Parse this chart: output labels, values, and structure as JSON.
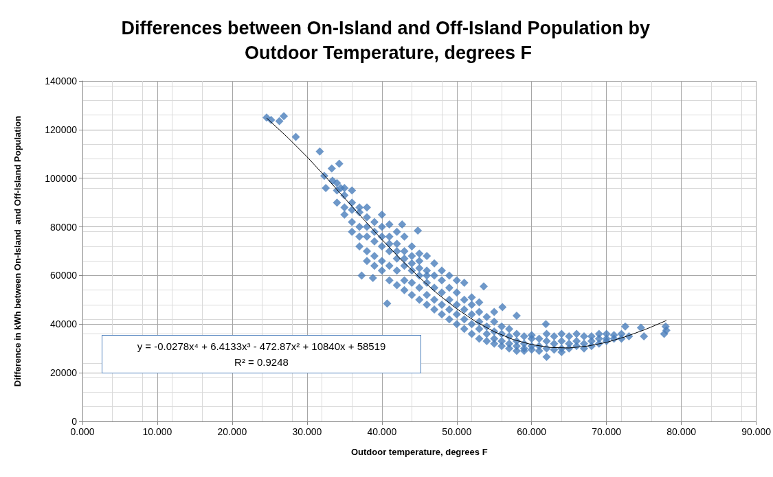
{
  "chart_data": {
    "type": "scatter",
    "title": "Differences between On-Island and Off-Island Population by Outdoor Temperature, degrees F",
    "xlabel": "Outdoor temperature, degrees F",
    "ylabel": "Difference in kWh between On-Island  and Off-Island Population",
    "xlim": [
      0,
      90
    ],
    "xticks": [
      {
        "value": 0,
        "label": "0.000"
      },
      {
        "value": 10,
        "label": "10.000"
      },
      {
        "value": 20,
        "label": "20.000"
      },
      {
        "value": 30,
        "label": "30.000"
      },
      {
        "value": 40,
        "label": "40.000"
      },
      {
        "value": 50,
        "label": "50.000"
      },
      {
        "value": 60,
        "label": "60.000"
      },
      {
        "value": 70,
        "label": "70.000"
      },
      {
        "value": 80,
        "label": "80.000"
      },
      {
        "value": 90,
        "label": "90.000"
      }
    ],
    "ylim": [
      0,
      140000
    ],
    "yticks": [
      0,
      20000,
      40000,
      60000,
      80000,
      100000,
      120000,
      140000
    ],
    "grid": true,
    "marker": "diamond",
    "annotations": [
      "y = -0.0278x⁴ + 6.4133x³ - 472.87x² + 10840x + 58519",
      "R² = 0.9248"
    ],
    "series": [
      {
        "type": "scatter",
        "color": "#4a7ebb",
        "x": [
          24.6,
          25.2,
          26.3,
          26.9,
          28.5,
          31.7,
          32.3,
          32.5,
          33.3,
          33.4,
          34.3,
          34.5,
          37.3,
          38.8,
          40.7,
          42.7,
          44.8,
          53.6,
          56.1,
          58.0,
          61.9,
          62.0,
          72.5,
          74.6,
          75.0,
          77.7,
          77.9,
          78.0,
          34,
          34,
          34,
          35,
          35,
          35,
          35,
          36,
          36,
          36,
          36,
          36,
          37,
          37,
          37,
          37,
          37,
          38,
          38,
          38,
          38,
          38,
          38,
          39,
          39,
          39,
          39,
          39,
          40,
          40,
          40,
          40,
          40,
          40,
          41,
          41,
          41,
          41,
          41,
          41,
          42,
          42,
          42,
          42,
          42,
          42,
          43,
          43,
          43,
          43,
          43,
          43,
          44,
          44,
          44,
          44,
          44,
          44,
          45,
          45,
          45,
          45,
          45,
          45,
          46,
          46,
          46,
          46,
          46,
          46,
          47,
          47,
          47,
          47,
          47,
          48,
          48,
          48,
          48,
          48,
          49,
          49,
          49,
          49,
          49,
          50,
          50,
          50,
          50,
          50,
          51,
          51,
          51,
          51,
          51,
          52,
          52,
          52,
          52,
          52,
          53,
          53,
          53,
          53,
          53,
          54,
          54,
          54,
          54,
          55,
          55,
          55,
          55,
          55,
          56,
          56,
          56,
          56,
          57,
          57,
          57,
          57,
          58,
          58,
          58,
          58,
          59,
          59,
          59,
          59,
          60,
          60,
          60,
          60,
          61,
          61,
          61,
          62,
          62,
          62,
          63,
          63,
          63,
          64,
          64,
          64,
          64,
          65,
          65,
          65,
          66,
          66,
          66,
          67,
          67,
          67,
          68,
          68,
          68,
          69,
          69,
          69,
          70,
          70,
          70,
          71,
          71,
          72,
          72,
          73
        ],
        "values": [
          125000,
          124000,
          123500,
          125500,
          117000,
          111000,
          101000,
          96000,
          104000,
          99000,
          106000,
          96000,
          60000,
          59000,
          48500,
          81000,
          78500,
          55500,
          47000,
          43500,
          40000,
          26500,
          39000,
          38500,
          35000,
          36000,
          39000,
          37500,
          95000,
          90000,
          98000,
          93000,
          88000,
          96000,
          85000,
          90000,
          82000,
          87000,
          78000,
          95000,
          86000,
          80000,
          72000,
          88000,
          76000,
          84000,
          76000,
          70000,
          80000,
          66000,
          88000,
          82000,
          74000,
          68000,
          78000,
          64000,
          80000,
          72000,
          66000,
          76000,
          62000,
          85000,
          76000,
          70000,
          64000,
          58000,
          73000,
          81000,
          73000,
          67000,
          62000,
          56000,
          70000,
          78000,
          70000,
          64000,
          58000,
          54000,
          67000,
          76000,
          68000,
          62000,
          57000,
          52000,
          65000,
          72000,
          66000,
          60000,
          55000,
          50000,
          63000,
          69000,
          62000,
          57000,
          52000,
          48000,
          60000,
          68000,
          60000,
          55000,
          50000,
          46000,
          65000,
          58000,
          53000,
          48000,
          44000,
          62000,
          55000,
          50000,
          46000,
          42000,
          60000,
          53000,
          48000,
          44000,
          40000,
          58000,
          50000,
          46000,
          42000,
          38000,
          57000,
          48000,
          44000,
          40000,
          36000,
          51000,
          45000,
          41000,
          38000,
          34000,
          49000,
          43000,
          39000,
          36000,
          33000,
          41000,
          37000,
          34000,
          32000,
          45000,
          39000,
          36000,
          33000,
          31000,
          38000,
          35000,
          32000,
          30000,
          36000,
          33000,
          31000,
          29000,
          35000,
          32000,
          30000,
          29000,
          34000,
          31000,
          29500,
          35500,
          34000,
          31000,
          29000,
          36000,
          33000,
          30000,
          35000,
          32000,
          29500,
          36000,
          33000,
          30000,
          28500,
          35000,
          32000,
          30000,
          36000,
          33000,
          31000,
          35000,
          32000,
          30000,
          35000,
          33000,
          31000,
          36000,
          34000,
          32000,
          36000,
          34000,
          33000,
          35500,
          34000,
          36000,
          34000,
          35000
        ]
      },
      {
        "type": "line",
        "color": "#000000",
        "marker": "none",
        "x": [
          24.6,
          27.5,
          30,
          32.5,
          35,
          37.5,
          40,
          42.5,
          45,
          47.5,
          50,
          52.5,
          55,
          57.5,
          60,
          62.5,
          65,
          67.5,
          70,
          72.5,
          75,
          76.5,
          78
        ],
        "values": [
          124800,
          116500,
          108800,
          100500,
          91900,
          83300,
          74800,
          66700,
          59200,
          52300,
          46300,
          41100,
          36900,
          33700,
          31600,
          30400,
          30200,
          31000,
          32500,
          34800,
          37600,
          39500,
          41500
        ]
      }
    ]
  }
}
